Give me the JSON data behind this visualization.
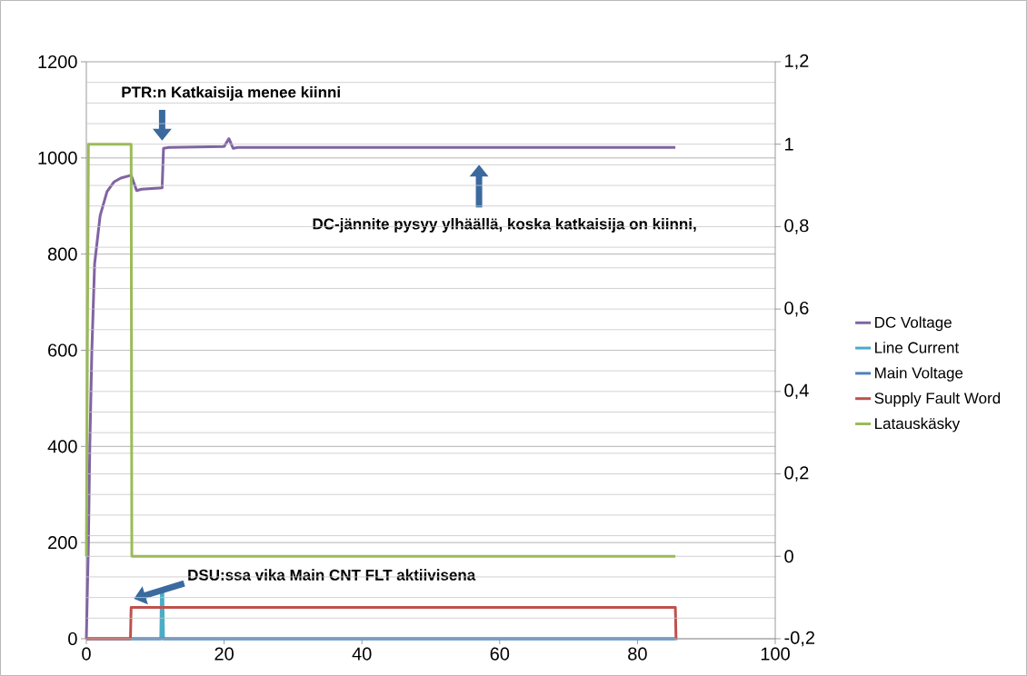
{
  "chart_data": {
    "type": "line",
    "series": [
      {
        "name": "DC Voltage",
        "color": "#8064a2",
        "x": [
          0,
          0.3,
          0.5,
          0.8,
          1.2,
          2,
          3,
          4,
          5,
          6.5,
          7.3,
          8,
          11,
          11.2,
          12,
          20,
          20.7,
          21.3,
          22,
          30,
          50,
          85.5
        ],
        "values": [
          0,
          200,
          400,
          600,
          780,
          880,
          930,
          950,
          958,
          964,
          932,
          935,
          938,
          1020,
          1022,
          1024,
          1040,
          1020,
          1022,
          1022,
          1022,
          1022
        ]
      },
      {
        "name": "Line Current",
        "color": "#4bacc6",
        "x": [
          0,
          10.8,
          10.9,
          11.1,
          11.2,
          85.5
        ],
        "values": [
          0,
          0,
          100,
          100,
          0,
          0
        ]
      },
      {
        "name": "Main Voltage",
        "color": "#4f81bd",
        "x": [
          0,
          85.8
        ],
        "values": [
          0,
          0
        ]
      },
      {
        "name": "Supply Fault Word",
        "color": "#c0504d",
        "x": [
          0,
          6.4,
          6.5,
          85.5,
          85.6
        ],
        "values": [
          0,
          0,
          65,
          65,
          0
        ]
      },
      {
        "name": "Latauskäsky",
        "color": "#9bbb59",
        "axis": "y2",
        "x": [
          0,
          0.3,
          6.5,
          6.6,
          85.5
        ],
        "values": [
          0,
          1,
          1,
          0,
          0
        ]
      }
    ],
    "xlim": [
      0,
      100
    ],
    "xticks": [
      0,
      20,
      40,
      60,
      80,
      100
    ],
    "ylim": [
      0,
      1200
    ],
    "yticks": [
      0,
      200,
      400,
      600,
      800,
      1000,
      1200
    ],
    "y2lim": [
      -0.2,
      1.2
    ],
    "y2ticks": [
      {
        "value": -0.2,
        "label": "-0,2"
      },
      {
        "value": 0,
        "label": "0"
      },
      {
        "value": 0.2,
        "label": "0,2"
      },
      {
        "value": 0.4,
        "label": "0,4"
      },
      {
        "value": 0.6,
        "label": "0,6"
      },
      {
        "value": 0.8,
        "label": "0,8"
      },
      {
        "value": 1,
        "label": "1"
      },
      {
        "value": 1.2,
        "label": "1,2"
      }
    ],
    "annotations": [
      "PTR:n Katkaisija menee kiinni",
      "DC-jännite pysyy ylhäällä, koska katkaisija on kiinni,",
      "DSU:ssa vika Main CNT FLT aktiivisena"
    ],
    "grid": "y",
    "legend": "right",
    "line_style": "solid",
    "marker": "none"
  }
}
